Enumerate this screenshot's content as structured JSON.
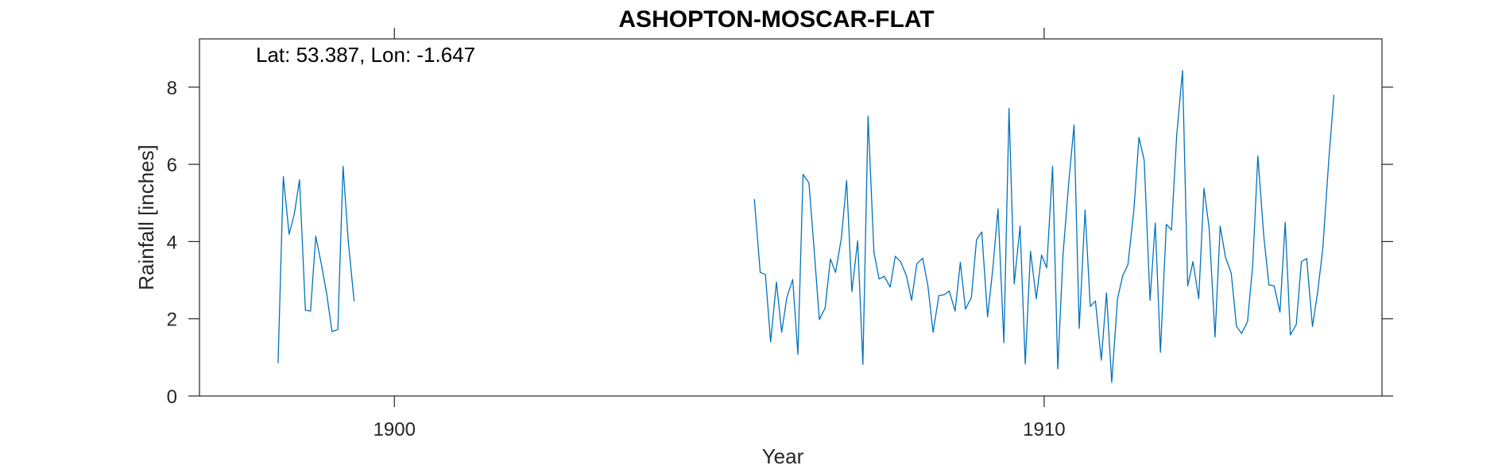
{
  "chart_data": {
    "type": "line",
    "title": "ASHOPTON-MOSCAR-FLAT",
    "annotation": "Lat: 53.387, Lon: -1.647",
    "xlabel": "Year",
    "ylabel": "Rainfall [inches]",
    "xlim": [
      1897.0,
      1915.2
    ],
    "ylim": [
      0,
      9.25
    ],
    "xticks": [
      1900,
      1910
    ],
    "yticks": [
      0,
      2,
      4,
      6,
      8
    ],
    "grid": false,
    "color": "#0072BD",
    "series": [
      {
        "segments": [
          [
            [
              1898.21,
              0.85
            ],
            [
              1898.29,
              5.68
            ],
            [
              1898.38,
              4.19
            ],
            [
              1898.46,
              4.72
            ],
            [
              1898.54,
              5.6
            ],
            [
              1898.63,
              2.22
            ],
            [
              1898.71,
              2.2
            ],
            [
              1898.79,
              4.14
            ],
            [
              1898.88,
              3.38
            ],
            [
              1898.96,
              2.63
            ],
            [
              1899.04,
              1.67
            ],
            [
              1899.13,
              1.72
            ],
            [
              1899.21,
              5.95
            ],
            [
              1899.29,
              4.02
            ],
            [
              1899.38,
              2.45
            ]
          ],
          [
            [
              1905.54,
              5.1
            ],
            [
              1905.63,
              3.2
            ],
            [
              1905.71,
              3.15
            ],
            [
              1905.79,
              1.4
            ],
            [
              1905.88,
              2.95
            ],
            [
              1905.96,
              1.65
            ],
            [
              1906.04,
              2.55
            ],
            [
              1906.13,
              3.02
            ],
            [
              1906.21,
              1.08
            ],
            [
              1906.29,
              5.74
            ],
            [
              1906.38,
              5.52
            ],
            [
              1906.46,
              3.8
            ],
            [
              1906.54,
              1.98
            ],
            [
              1906.63,
              2.28
            ],
            [
              1906.71,
              3.55
            ],
            [
              1906.79,
              3.2
            ],
            [
              1906.88,
              4.1
            ],
            [
              1906.96,
              5.58
            ],
            [
              1907.04,
              2.7
            ],
            [
              1907.13,
              4.02
            ],
            [
              1907.21,
              0.82
            ],
            [
              1907.29,
              7.25
            ],
            [
              1907.38,
              3.72
            ],
            [
              1907.46,
              3.03
            ],
            [
              1907.54,
              3.1
            ],
            [
              1907.63,
              2.82
            ],
            [
              1907.71,
              3.62
            ],
            [
              1907.79,
              3.48
            ],
            [
              1907.88,
              3.12
            ],
            [
              1907.96,
              2.48
            ],
            [
              1908.04,
              3.42
            ],
            [
              1908.13,
              3.57
            ],
            [
              1908.21,
              2.87
            ],
            [
              1908.29,
              1.65
            ],
            [
              1908.38,
              2.6
            ],
            [
              1908.46,
              2.62
            ],
            [
              1908.54,
              2.72
            ],
            [
              1908.63,
              2.2
            ],
            [
              1908.71,
              3.46
            ],
            [
              1908.79,
              2.25
            ],
            [
              1908.88,
              2.55
            ],
            [
              1908.96,
              4.05
            ],
            [
              1909.04,
              4.25
            ],
            [
              1909.13,
              2.05
            ],
            [
              1909.21,
              3.3
            ],
            [
              1909.29,
              4.85
            ],
            [
              1909.38,
              1.38
            ],
            [
              1909.46,
              7.45
            ],
            [
              1909.54,
              2.9
            ],
            [
              1909.63,
              4.4
            ],
            [
              1909.71,
              0.83
            ],
            [
              1909.79,
              3.75
            ],
            [
              1909.88,
              2.52
            ],
            [
              1909.96,
              3.65
            ],
            [
              1910.04,
              3.32
            ],
            [
              1910.13,
              5.95
            ],
            [
              1910.21,
              0.7
            ],
            [
              1910.29,
              3.65
            ],
            [
              1910.38,
              5.55
            ],
            [
              1910.46,
              7.02
            ],
            [
              1910.54,
              1.75
            ],
            [
              1910.63,
              4.82
            ],
            [
              1910.71,
              2.32
            ],
            [
              1910.79,
              2.46
            ],
            [
              1910.88,
              0.93
            ],
            [
              1910.96,
              2.67
            ],
            [
              1911.04,
              0.35
            ],
            [
              1911.13,
              2.52
            ],
            [
              1911.21,
              3.12
            ],
            [
              1911.29,
              3.4
            ],
            [
              1911.38,
              4.8
            ],
            [
              1911.46,
              6.7
            ],
            [
              1911.54,
              6.1
            ],
            [
              1911.63,
              2.48
            ],
            [
              1911.71,
              4.48
            ],
            [
              1911.79,
              1.13
            ],
            [
              1911.88,
              4.45
            ],
            [
              1911.96,
              4.3
            ],
            [
              1912.04,
              6.73
            ],
            [
              1912.13,
              8.43
            ],
            [
              1912.21,
              2.85
            ],
            [
              1912.29,
              3.48
            ],
            [
              1912.38,
              2.52
            ],
            [
              1912.46,
              5.38
            ],
            [
              1912.54,
              4.35
            ],
            [
              1912.63,
              1.53
            ],
            [
              1912.71,
              4.4
            ],
            [
              1912.79,
              3.6
            ],
            [
              1912.88,
              3.18
            ],
            [
              1912.96,
              1.8
            ],
            [
              1913.04,
              1.62
            ],
            [
              1913.13,
              1.93
            ],
            [
              1913.21,
              3.38
            ],
            [
              1913.29,
              6.22
            ],
            [
              1913.38,
              4.15
            ],
            [
              1913.46,
              2.88
            ],
            [
              1913.54,
              2.85
            ],
            [
              1913.63,
              2.17
            ],
            [
              1913.71,
              4.5
            ],
            [
              1913.79,
              1.58
            ],
            [
              1913.88,
              1.85
            ],
            [
              1913.96,
              3.48
            ],
            [
              1914.04,
              3.56
            ],
            [
              1914.13,
              1.8
            ],
            [
              1914.21,
              2.7
            ],
            [
              1914.29,
              3.84
            ],
            [
              1914.38,
              6.1
            ],
            [
              1914.46,
              7.8
            ]
          ]
        ]
      }
    ]
  }
}
